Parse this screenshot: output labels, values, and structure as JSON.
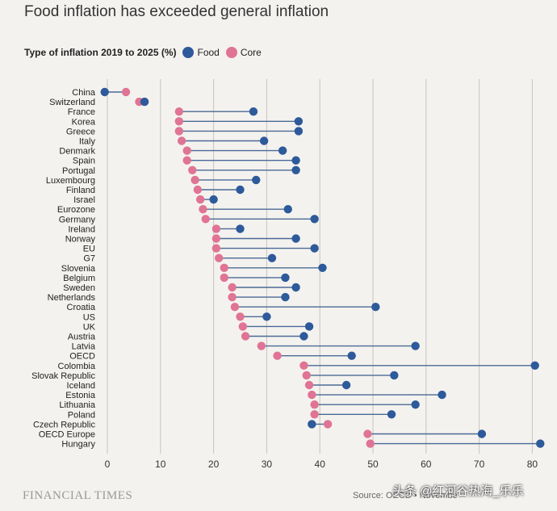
{
  "title": "Food inflation has exceeded general inflation",
  "legend": {
    "lead": "Type of inflation 2019 to 2025 (%)",
    "food_label": "Food",
    "core_label": "Core"
  },
  "colors": {
    "food": "#2d5a9a",
    "core": "#e07494",
    "line": "#4a6a96",
    "grid": "#c8c3bd"
  },
  "footer": {
    "brand": "FINANCIAL TIMES",
    "source": "Source: OECD • Novembe",
    "watermark": "头条 @红河谷热海_乐乐"
  },
  "chart_data": {
    "type": "dumbbell",
    "title": "Food inflation has exceeded general inflation",
    "xlabel": "",
    "ylabel": "",
    "xlim": [
      -2,
      82
    ],
    "xticks": [
      0,
      10,
      20,
      30,
      40,
      50,
      60,
      70,
      80
    ],
    "grid": true,
    "series": [
      {
        "name": "Food",
        "values": [
          -0.5,
          7,
          27.5,
          36,
          36,
          29.5,
          33,
          35.5,
          35.5,
          28,
          25,
          20,
          34,
          39,
          25,
          35.5,
          39,
          31,
          40.5,
          33.5,
          35.5,
          33.5,
          50.5,
          30,
          38,
          37,
          58,
          46,
          80.5,
          54,
          45,
          63,
          58,
          53.5,
          38.5,
          70.5,
          81.5
        ]
      },
      {
        "name": "Core",
        "values": [
          3.5,
          6,
          13.5,
          13.5,
          13.5,
          14,
          15,
          15,
          16,
          16.5,
          17,
          17.5,
          18,
          18.5,
          20.5,
          20.5,
          20.5,
          21,
          22,
          22,
          23.5,
          23.5,
          24,
          25,
          25.5,
          26,
          29,
          32,
          37,
          37.5,
          38,
          38.5,
          39,
          39,
          41.5,
          49,
          49.5
        ]
      }
    ],
    "categories": [
      "China",
      "Switzerland",
      "France",
      "Korea",
      "Greece",
      "Italy",
      "Denmark",
      "Spain",
      "Portugal",
      "Luxembourg",
      "Finland",
      "Israel",
      "Eurozone",
      "Germany",
      "Ireland",
      "Norway",
      "EU",
      "G7",
      "Slovenia",
      "Belgium",
      "Sweden",
      "Netherlands",
      "Croatia",
      "US",
      "UK",
      "Austria",
      "Latvia",
      "OECD",
      "Colombia",
      "Slovak Republic",
      "Iceland",
      "Estonia",
      "Lithuania",
      "Poland",
      "Czech Republic",
      "OECD Europe",
      "Hungary"
    ]
  }
}
